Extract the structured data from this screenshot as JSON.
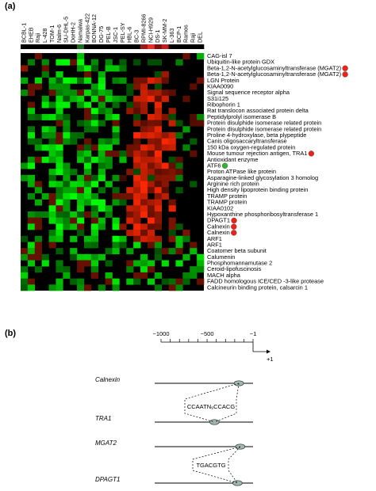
{
  "figure": {
    "panel_a_label": "(a)",
    "panel_b_label": "(b)"
  },
  "chart_data": {
    "type": "heatmap",
    "columns": [
      "BCBL-1",
      "EHEB",
      "Raji",
      "L-428",
      "TOM-1",
      "Nalm-6",
      "SU-DHL-5",
      "DoHH-2",
      "Namalwa",
      "Karpas-422",
      "BONNA-12",
      "DG-75",
      "PEL-B",
      "JSC-1",
      "PEL-SY",
      "HBL-6",
      "BC-3",
      "RPMI-8266",
      "NCI-H929",
      "DS-1",
      "SK-MM-2",
      "L-363",
      "BCP-1",
      "Ramos",
      "Raji",
      "DEL"
    ],
    "header_strip_colors": [
      "#000",
      "#000",
      "#000",
      "#000",
      "#000",
      "#000",
      "#000",
      "#000",
      "#1f6b1f",
      "#000",
      "#000",
      "#000",
      "#000",
      "#000",
      "#000",
      "#000",
      "#000",
      "#9a1a1a",
      "#e03030",
      "#7a1010",
      "#c22020",
      "#000",
      "#000",
      "#000",
      "#000",
      "#000"
    ],
    "rows": [
      {
        "label": "CAG-isl 7",
        "marker": ""
      },
      {
        "label": "Ubiquitin-like protein GDX",
        "marker": ""
      },
      {
        "label": "Beta-1,2-N-acetylglucosaminyltransferase (MGAT2)",
        "marker": "red"
      },
      {
        "label": "Beta-1,2-N-acetylglucosaminyltransferase (MGAT2)",
        "marker": "red"
      },
      {
        "label": "LGN Protein",
        "marker": ""
      },
      {
        "label": "KIAA0090",
        "marker": ""
      },
      {
        "label": "Signal sequence receptor alpha",
        "marker": ""
      },
      {
        "label": "S31i125",
        "marker": ""
      },
      {
        "label": "Ribophorin 1",
        "marker": ""
      },
      {
        "label": "Rat translocon associated protein delta",
        "marker": ""
      },
      {
        "label": "Peptidylprolyl isomerase B",
        "marker": ""
      },
      {
        "label": "Protein disulphide isomerase related protein",
        "marker": ""
      },
      {
        "label": "Protein disulphide isomerase related protein",
        "marker": ""
      },
      {
        "label": "Proline 4-hydroxylase, beta plypeptide",
        "marker": ""
      },
      {
        "label": "Canis oligosaccaryltransferase",
        "marker": ""
      },
      {
        "label": "150 kDa oxygen-regulated protein",
        "marker": ""
      },
      {
        "label": "Mouse tumour rejection antigen, TRA1",
        "marker": "red"
      },
      {
        "label": "Antioxidant enzyme",
        "marker": ""
      },
      {
        "label": "ATF6",
        "marker": "green"
      },
      {
        "label": "Proton ATPase like protein",
        "marker": ""
      },
      {
        "label": "Asparagine-linked glycosylation 3 homolog",
        "marker": ""
      },
      {
        "label": "Arginine rich protein",
        "marker": ""
      },
      {
        "label": "High density lipoprotein binding protein",
        "marker": ""
      },
      {
        "label": "TRAMP protein",
        "marker": ""
      },
      {
        "label": "TRAMP protein",
        "marker": ""
      },
      {
        "label": "KIAA0102",
        "marker": ""
      },
      {
        "label": "Hypoxanthine phosphoribosyltransferase 1",
        "marker": ""
      },
      {
        "label": "DPAGT1",
        "marker": "red"
      },
      {
        "label": "Calnexin",
        "marker": "red"
      },
      {
        "label": "Calnexin",
        "marker": "red"
      },
      {
        "label": "ARF1",
        "marker": ""
      },
      {
        "label": "ARF1",
        "marker": ""
      },
      {
        "label": "Coatomer beta subunit",
        "marker": ""
      },
      {
        "label": "Calumenin",
        "marker": ""
      },
      {
        "label": "Phosphomannamutase 2",
        "marker": ""
      },
      {
        "label": "Ceroid-lipofuscinosis",
        "marker": ""
      },
      {
        "label": "MACH alpha",
        "marker": ""
      },
      {
        "label": "FADD homologous ICE/CED -3-like protease",
        "marker": ""
      },
      {
        "label": "Calcineurin binding protein, calsarcin 1",
        "marker": ""
      }
    ],
    "values_note": "",
    "color_scale": {
      "negative": "#00ff00",
      "zero": "#000000",
      "positive": "#ff2200"
    }
  },
  "panel_b": {
    "axis_ticks": [
      "−1000",
      "−500",
      "−1"
    ],
    "tss_label": "+1",
    "genes": [
      "Calnexin",
      "TRA1",
      "MGAT2",
      "DPAGT1"
    ],
    "motif_1": "CCAATN₉CCACG",
    "motif_2": "TGACGTG"
  }
}
